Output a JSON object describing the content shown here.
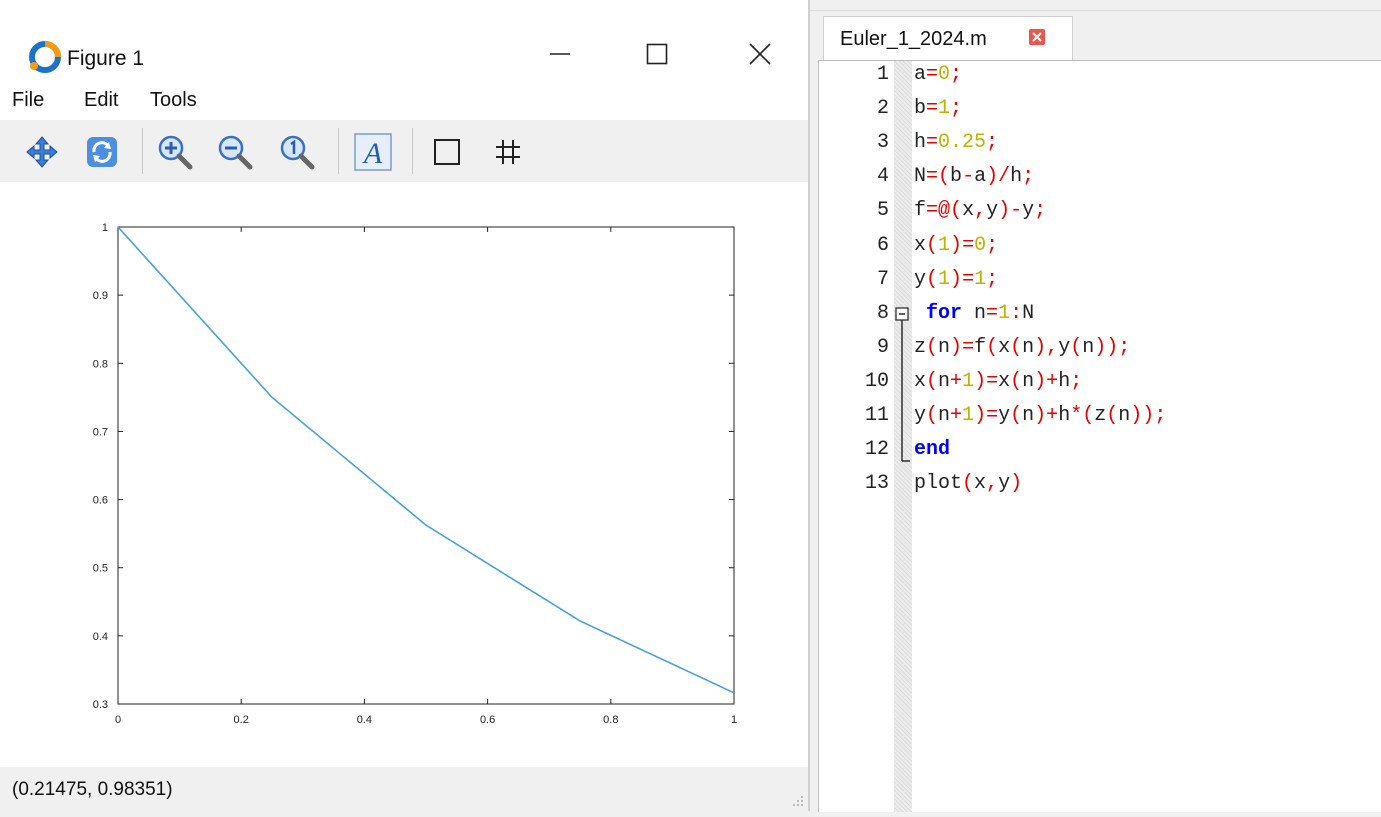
{
  "figure": {
    "title": "Figure 1",
    "menu": [
      "File",
      "Edit",
      "Tools"
    ],
    "toolbar_icons": [
      "pan-icon",
      "rotate-icon",
      "zoom-in-icon",
      "zoom-out-icon",
      "zoom-reset-icon",
      "insert-text-icon",
      "toggle-axes-box-icon",
      "toggle-grid-icon"
    ],
    "status_coords": "(0.21475, 0.98351)"
  },
  "chart_data": {
    "type": "line",
    "x": [
      0,
      0.25,
      0.5,
      0.75,
      1
    ],
    "series": [
      {
        "values": [
          1,
          0.75,
          0.5625,
          0.421875,
          0.31640625
        ],
        "color": "#4a9fd5"
      }
    ],
    "xlim": [
      0,
      1
    ],
    "ylim": [
      0.3,
      1
    ],
    "xticks": [
      "0",
      "0.2",
      "0.4",
      "0.6",
      "0.8",
      "1"
    ],
    "yticks": [
      "0.3",
      "0.4",
      "0.5",
      "0.6",
      "0.7",
      "0.8",
      "0.9",
      "1"
    ],
    "title": "",
    "xlabel": "",
    "ylabel": "",
    "grid": false
  },
  "editor": {
    "tab_label": "Euler_1_2024.m",
    "lines": [
      "a=0;",
      "b=1;",
      "h=0.25;",
      "N=(b-a)/h;",
      "f=@(x,y)-y;",
      "x(1)=0;",
      "y(1)=1;",
      " for n=1:N",
      "z(n)=f(x(n),y(n));",
      "x(n+1)=x(n)+h;",
      "y(n+1)=y(n)+h*(z(n));",
      "end",
      "plot(x,y)"
    ]
  }
}
